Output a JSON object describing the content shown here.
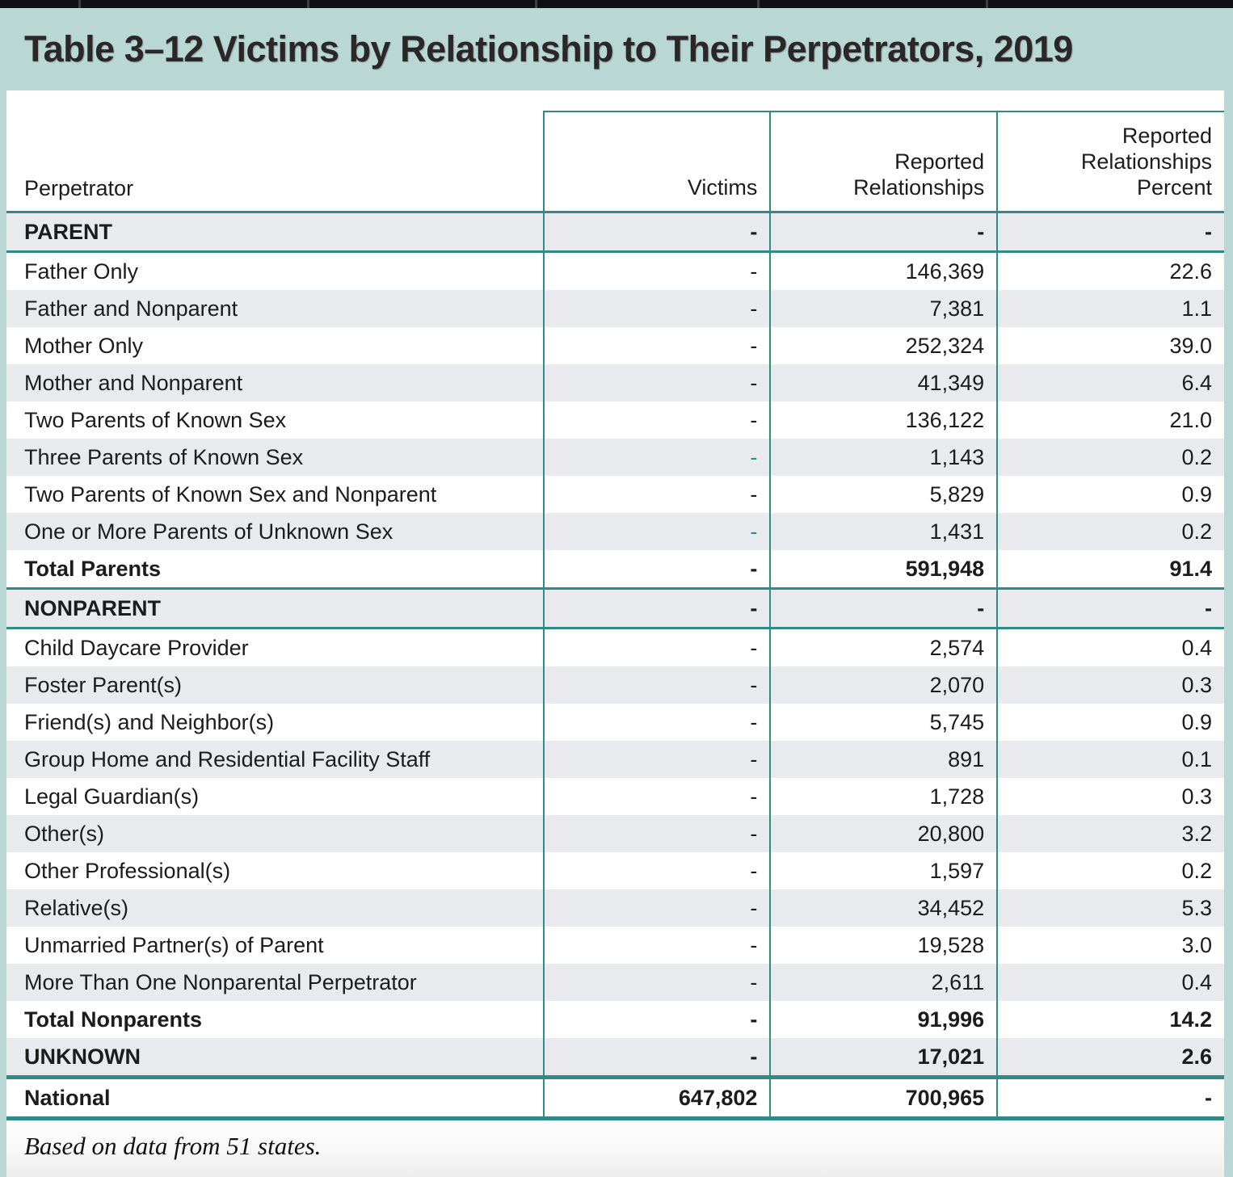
{
  "title": "Table 3–12 Victims by Relationship to Their Perpetrators, 2019",
  "table": {
    "headers": {
      "perpetrator": "Perpetrator",
      "victims": "Victims",
      "reported": "Reported\nRelationships",
      "percent": "Reported\nRelationships\nPercent"
    },
    "rows": [
      {
        "label": "PARENT",
        "victims": "-",
        "reported": "-",
        "percent": "-",
        "style": "section",
        "border": "teal"
      },
      {
        "label": "Father Only",
        "victims": "-",
        "reported": "146,369",
        "percent": "22.6",
        "style": "data"
      },
      {
        "label": "Father and Nonparent",
        "victims": "-",
        "reported": "7,381",
        "percent": "1.1",
        "style": "data"
      },
      {
        "label": "Mother Only",
        "victims": "-",
        "reported": "252,324",
        "percent": "39.0",
        "style": "data"
      },
      {
        "label": "Mother and Nonparent",
        "victims": "-",
        "reported": "41,349",
        "percent": "6.4",
        "style": "data"
      },
      {
        "label": "Two Parents of Known Sex",
        "victims": "-",
        "reported": "136,122",
        "percent": "21.0",
        "style": "data"
      },
      {
        "label": "Three Parents of Known Sex",
        "victims": "-",
        "reported": "1,143",
        "percent": "0.2",
        "style": "data",
        "dash_teal": true
      },
      {
        "label": "Two Parents of Known Sex and Nonparent",
        "victims": "-",
        "reported": "5,829",
        "percent": "0.9",
        "style": "data"
      },
      {
        "label": "One or More Parents of Unknown Sex",
        "victims": "-",
        "reported": "1,431",
        "percent": "0.2",
        "style": "data",
        "dash_teal": true
      },
      {
        "label": "Total Parents",
        "victims": "-",
        "reported": "591,948",
        "percent": "91.4",
        "style": "total",
        "border": "teal"
      },
      {
        "label": "NONPARENT",
        "victims": "-",
        "reported": "-",
        "percent": "-",
        "style": "section",
        "border": "teal"
      },
      {
        "label": "Child Daycare Provider",
        "victims": "-",
        "reported": "2,574",
        "percent": "0.4",
        "style": "data"
      },
      {
        "label": "Foster Parent(s)",
        "victims": "-",
        "reported": "2,070",
        "percent": "0.3",
        "style": "data"
      },
      {
        "label": "Friend(s) and Neighbor(s)",
        "victims": "-",
        "reported": "5,745",
        "percent": "0.9",
        "style": "data"
      },
      {
        "label": "Group Home and Residential Facility Staff",
        "victims": "-",
        "reported": "891",
        "percent": "0.1",
        "style": "data"
      },
      {
        "label": "Legal Guardian(s)",
        "victims": "-",
        "reported": "1,728",
        "percent": "0.3",
        "style": "data"
      },
      {
        "label": "Other(s)",
        "victims": "-",
        "reported": "20,800",
        "percent": "3.2",
        "style": "data"
      },
      {
        "label": "Other Professional(s)",
        "victims": "-",
        "reported": "1,597",
        "percent": "0.2",
        "style": "data"
      },
      {
        "label": "Relative(s)",
        "victims": "-",
        "reported": "34,452",
        "percent": "5.3",
        "style": "data"
      },
      {
        "label": "Unmarried Partner(s) of Parent",
        "victims": "-",
        "reported": "19,528",
        "percent": "3.0",
        "style": "data"
      },
      {
        "label": "More Than One Nonparental Perpetrator",
        "victims": "-",
        "reported": "2,611",
        "percent": "0.4",
        "style": "data"
      },
      {
        "label": "Total Nonparents",
        "victims": "-",
        "reported": "91,996",
        "percent": "14.2",
        "style": "total"
      },
      {
        "label": "UNKNOWN",
        "victims": "-",
        "reported": "17,021",
        "percent": "2.6",
        "style": "section-total",
        "border": "teal-thick"
      },
      {
        "label": "National",
        "victims": "647,802",
        "reported": "700,965",
        "percent": "-",
        "style": "national",
        "border": "teal-thick"
      }
    ],
    "footnote": "Based on data from 51 states.",
    "colors": {
      "page_background": "#b9d7d3",
      "teal_border": "#2e8b87",
      "zebra_row": "#e8eaee"
    }
  }
}
